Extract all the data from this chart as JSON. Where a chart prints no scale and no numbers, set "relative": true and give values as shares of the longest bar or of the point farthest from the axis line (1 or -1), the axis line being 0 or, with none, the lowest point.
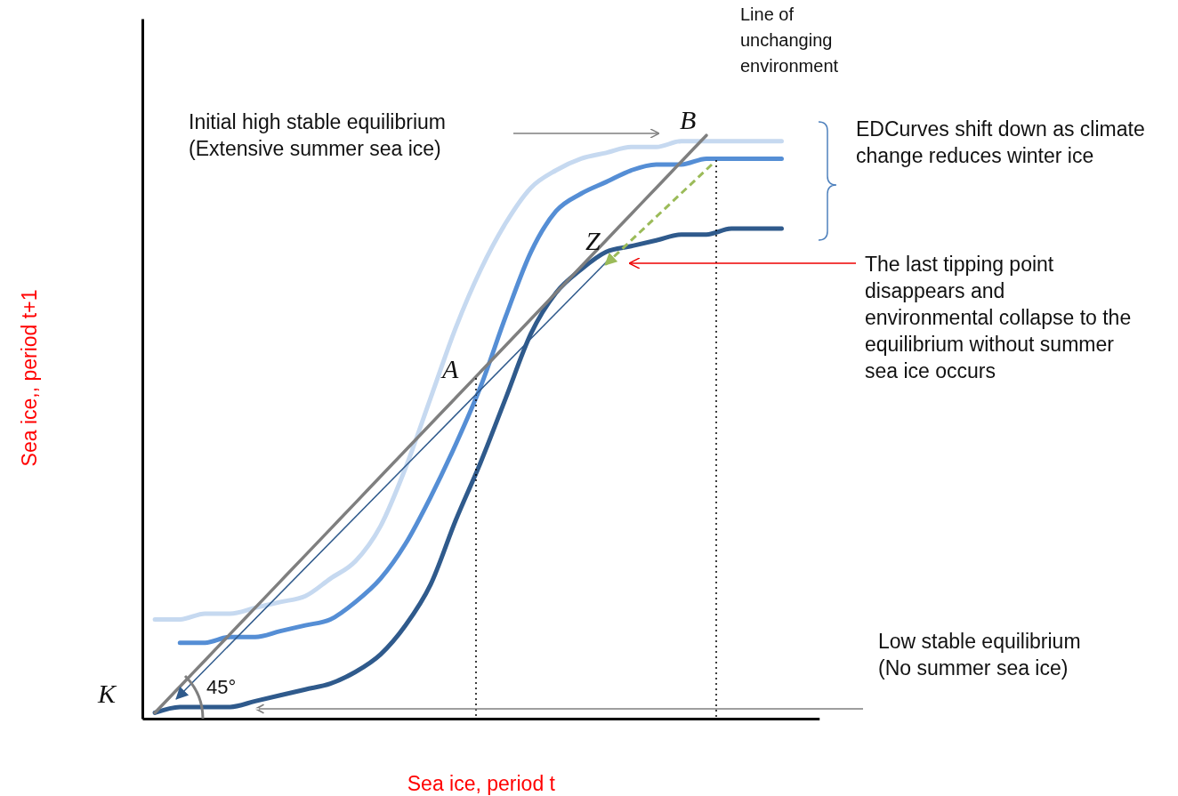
{
  "chart_data": {
    "type": "line",
    "relative": true,
    "xlabel": "Sea ice, period t",
    "ylabel": "Sea ice,, period t+1",
    "categories": [
      null,
      null,
      null,
      null,
      null,
      null,
      null,
      null,
      null,
      null,
      null,
      null,
      null,
      null,
      null,
      null,
      null,
      null,
      null,
      null,
      null,
      null,
      null,
      null,
      null,
      null,
      null
    ],
    "series": [
      {
        "color": "#c6d9f0",
        "values": [
          0.17,
          0.17,
          0.18,
          0.18,
          0.19,
          0.2,
          0.21,
          0.24,
          0.27,
          0.33,
          0.43,
          0.55,
          0.67,
          0.77,
          0.85,
          0.91,
          0.94,
          0.96,
          0.97,
          0.98,
          0.98,
          0.99,
          0.99,
          0.99,
          0.99,
          0.99,
          null
        ]
      },
      {
        "color": "#558ed5",
        "values": [
          null,
          0.13,
          0.13,
          0.14,
          0.14,
          0.15,
          0.16,
          0.17,
          0.2,
          0.24,
          0.3,
          0.38,
          0.47,
          0.57,
          0.69,
          0.8,
          0.87,
          0.9,
          0.92,
          0.94,
          0.95,
          0.95,
          0.96,
          0.96,
          0.96,
          0.96,
          null
        ]
      },
      {
        "color": "#2f5a8c",
        "values": [
          0.01,
          0.02,
          0.02,
          0.02,
          0.03,
          0.04,
          0.05,
          0.06,
          0.08,
          0.11,
          0.16,
          0.23,
          0.34,
          0.44,
          0.55,
          0.66,
          0.73,
          0.77,
          0.8,
          0.81,
          0.82,
          0.83,
          0.83,
          0.84,
          0.84,
          0.84,
          null
        ]
      },
      {
        "color": "#7f7f7f",
        "values": [
          0.01,
          0.055,
          0.1,
          0.145,
          0.19,
          0.235,
          0.28,
          0.325,
          0.37,
          0.415,
          0.46,
          0.505,
          0.55,
          0.595,
          0.64,
          0.685,
          0.73,
          0.775,
          0.82,
          0.865,
          0.91,
          0.955,
          1,
          null,
          null,
          null,
          null
        ]
      }
    ],
    "annotations": [
      "Line of unchanging environment",
      "Initial high stable equilibrium (Extensive summer sea ice)",
      "B",
      "EDCurves shift down as climate change reduces winter ice",
      "Z",
      "The last tipping point disappears and environmental collapse to the equilibrium without summer sea ice occurs",
      "A",
      "Low stable equilibrium (No summer sea ice)",
      "K",
      "45°"
    ]
  }
}
